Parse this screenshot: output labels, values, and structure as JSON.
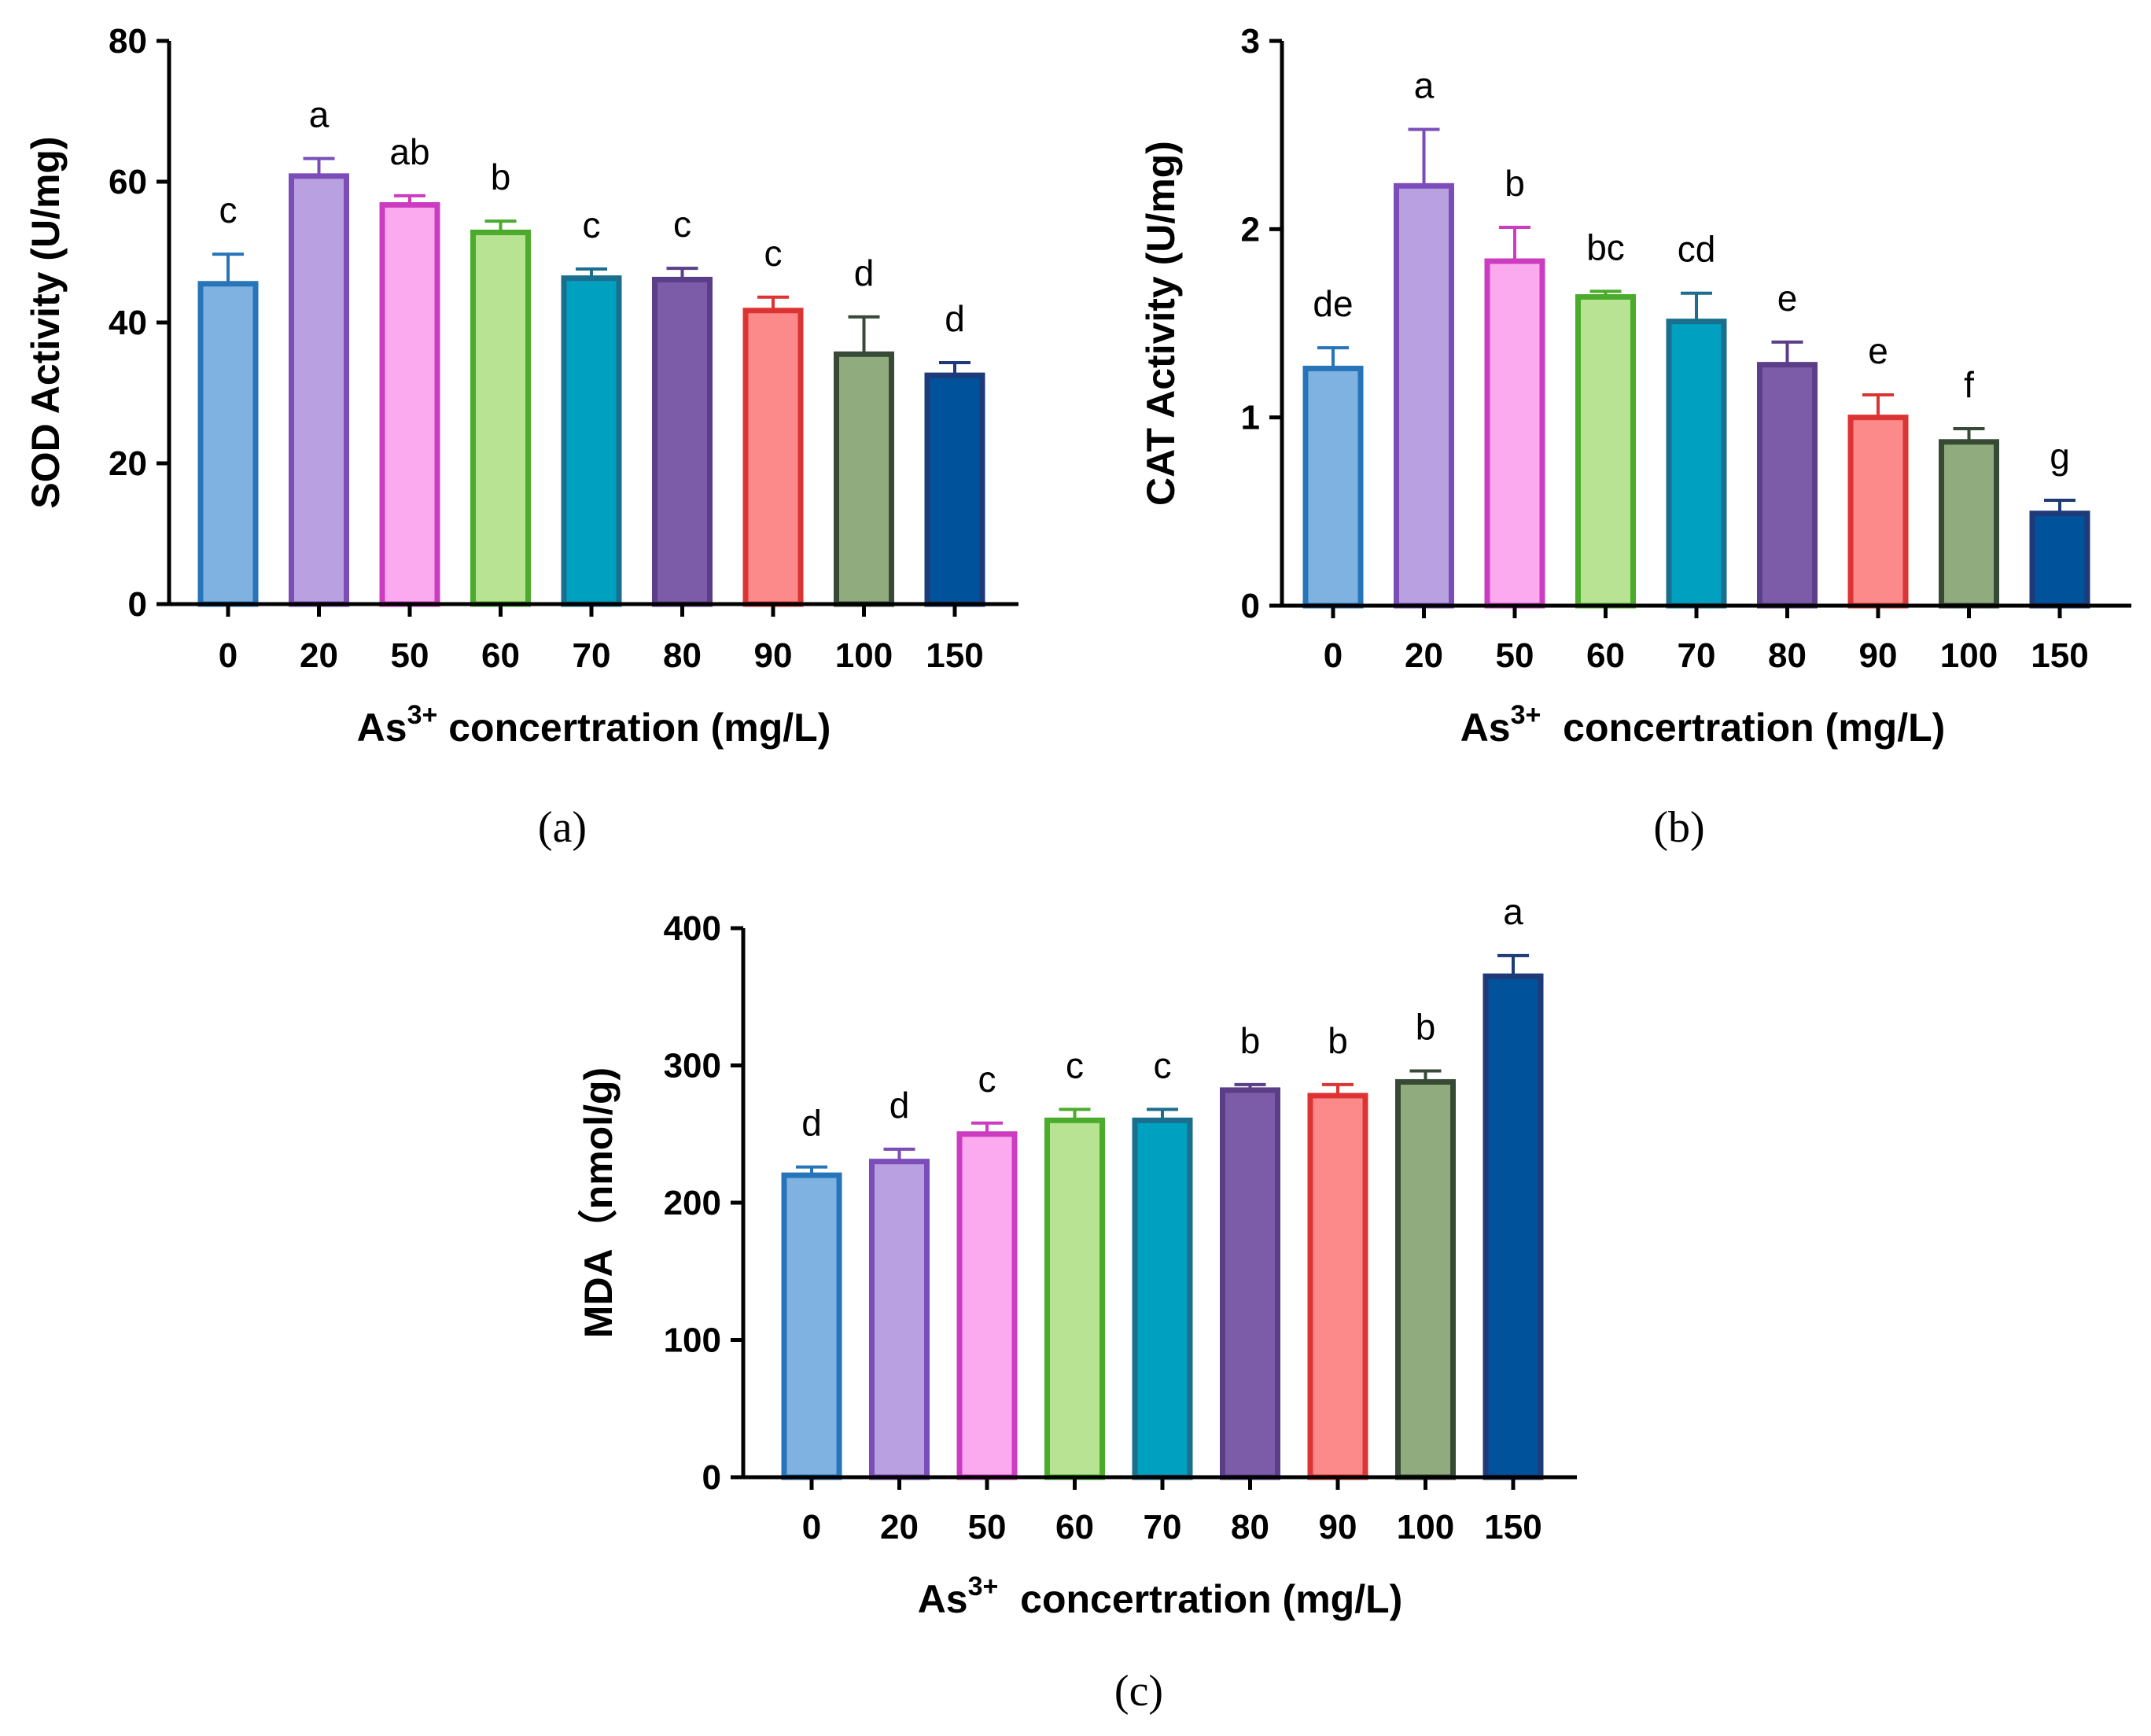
{
  "chart_data": [
    {
      "id": "a",
      "type": "bar",
      "panel_label": "(a)",
      "categories": [
        "0",
        "20",
        "50",
        "60",
        "70",
        "80",
        "90",
        "100",
        "150"
      ],
      "values": [
        45.5,
        60.8,
        56.7,
        52.8,
        46.3,
        46.1,
        41.7,
        35.5,
        32.5
      ],
      "errors": [
        4.2,
        2.5,
        1.3,
        1.6,
        1.3,
        1.6,
        1.9,
        5.3,
        1.8
      ],
      "letters": [
        "c",
        "a",
        "ab",
        "b",
        "c",
        "c",
        "c",
        "d",
        "d"
      ],
      "ylabel": "SOD Activity (U/mg)",
      "xlabel_main": "As",
      "xlabel_sup": "3+",
      "xlabel_rest": " concertration (mg/L)",
      "ylim": [
        0,
        80
      ],
      "yticks": [
        0,
        20,
        40,
        60,
        80
      ],
      "grid": false
    },
    {
      "id": "b",
      "type": "bar",
      "panel_label": "(b)",
      "categories": [
        "0",
        "20",
        "50",
        "60",
        "70",
        "80",
        "90",
        "100",
        "150"
      ],
      "values": [
        1.26,
        2.23,
        1.83,
        1.64,
        1.51,
        1.28,
        1.0,
        0.87,
        0.49
      ],
      "errors": [
        0.11,
        0.3,
        0.18,
        0.03,
        0.15,
        0.12,
        0.12,
        0.07,
        0.07
      ],
      "letters": [
        "de",
        "a",
        "b",
        "bc",
        "cd",
        "e",
        "e",
        "f",
        "g"
      ],
      "ylabel": "CAT Activity (U/mg)",
      "xlabel_main": "As",
      "xlabel_sup": "3+",
      "xlabel_rest": "  concertration (mg/L)",
      "ylim": [
        0,
        3
      ],
      "yticks": [
        0,
        1,
        2,
        3
      ],
      "grid": false
    },
    {
      "id": "c",
      "type": "bar",
      "panel_label": "(c)",
      "categories": [
        "0",
        "20",
        "50",
        "60",
        "70",
        "80",
        "90",
        "100",
        "150"
      ],
      "values": [
        220,
        230,
        250,
        260,
        260,
        282,
        278,
        288,
        365
      ],
      "errors": [
        6,
        9,
        8,
        8,
        8,
        4,
        8,
        8,
        15
      ],
      "letters": [
        "d",
        "d",
        "c",
        "c",
        "c",
        "b",
        "b",
        "b",
        "a"
      ],
      "ylabel": "MDA（nmol/g)",
      "xlabel_main": "As",
      "xlabel_sup": "3+",
      "xlabel_rest": "  concertration (mg/L)",
      "ylim": [
        0,
        400
      ],
      "yticks": [
        0,
        100,
        200,
        300,
        400
      ],
      "grid": false
    }
  ],
  "style": {
    "bar_fill": [
      "#7fb2e0",
      "#b9a0e0",
      "#fbaaf0",
      "#b7e392",
      "#00a0c0",
      "#7c5ca8",
      "#fc8a8a",
      "#90ac7e",
      "#00529a"
    ],
    "bar_stroke": [
      "#2775b8",
      "#7b4db9",
      "#cc3cc0",
      "#4aab2c",
      "#1a6f8e",
      "#5a3e88",
      "#dc3434",
      "#374a36",
      "#1f3a78"
    ]
  }
}
